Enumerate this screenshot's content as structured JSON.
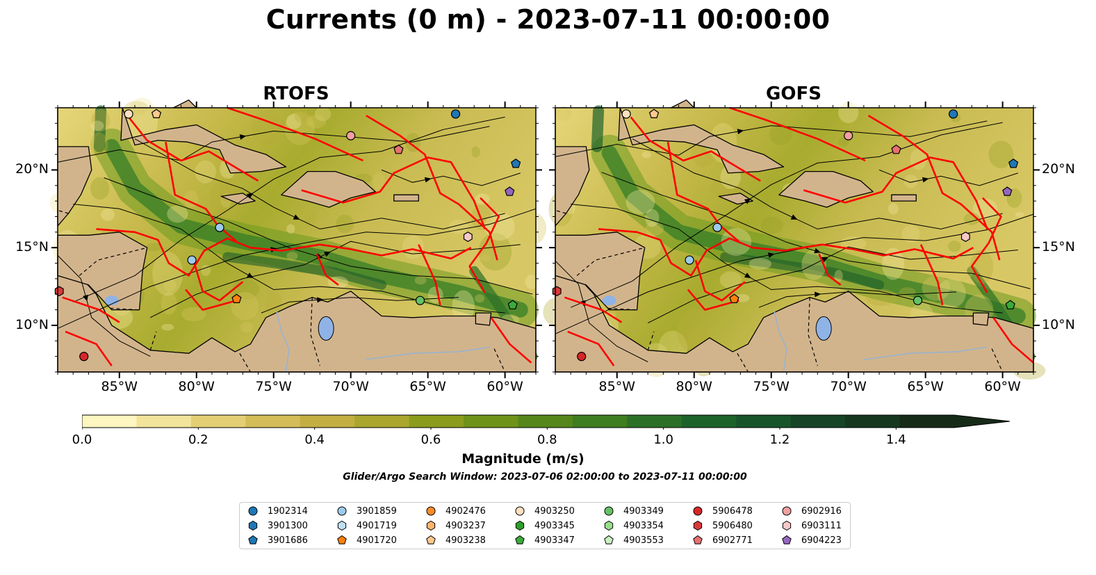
{
  "title": "Currents (0 m) - 2023-07-11 00:00:00",
  "panels": [
    {
      "id": "rtofs",
      "title": "RTOFS"
    },
    {
      "id": "gofs",
      "title": "GOFS"
    }
  ],
  "map_extent": {
    "lon": [
      -89,
      -58
    ],
    "lat": [
      7,
      24
    ]
  },
  "lon_ticks": [
    {
      "value": -85,
      "label": "85°W"
    },
    {
      "value": -80,
      "label": "80°W"
    },
    {
      "value": -75,
      "label": "75°W"
    },
    {
      "value": -70,
      "label": "70°W"
    },
    {
      "value": -65,
      "label": "65°W"
    },
    {
      "value": -60,
      "label": "60°W"
    }
  ],
  "lat_ticks": [
    {
      "value": 10,
      "label": "10°N"
    },
    {
      "value": 15,
      "label": "15°N"
    },
    {
      "value": 20,
      "label": "20°N"
    }
  ],
  "colorbar": {
    "label": "Magnitude (m/s)",
    "min": 0.0,
    "max": 1.5,
    "extend": "max",
    "ticks": [
      "0.0",
      "0.2",
      "0.4",
      "0.6",
      "0.8",
      "1.0",
      "1.2",
      "1.4"
    ],
    "colors": [
      "#fdf6c0",
      "#f2e49a",
      "#e3d075",
      "#d4bd58",
      "#c3ae42",
      "#aaa62e",
      "#8b9c1c",
      "#6f9218",
      "#55861b",
      "#3f7d20",
      "#2b7026",
      "#1d6329",
      "#175429",
      "#154526",
      "#15371f",
      "#162a18"
    ]
  },
  "window_note": "Glider/Argo Search Window: 2023-07-06 02:00:00 to 2023-07-11 00:00:00",
  "colors": {
    "land": "#d2b48c",
    "eez_lines": "#ff0000",
    "lakes": "#8fb3e6",
    "rivers": "#9fb3c8"
  },
  "legend": [
    {
      "label": "1902314",
      "marker": "circle",
      "color": "#1f77b4"
    },
    {
      "label": "3901300",
      "marker": "hexagon",
      "color": "#1f77b4"
    },
    {
      "label": "3901686",
      "marker": "pentagon",
      "color": "#1f77b4"
    },
    {
      "label": "3901859",
      "marker": "circle",
      "color": "#9dcbe9"
    },
    {
      "label": "4901719",
      "marker": "hexagon",
      "color": "#bfe0f4"
    },
    {
      "label": "4901720",
      "marker": "pentagon",
      "color": "#ff7f0e"
    },
    {
      "label": "4902476",
      "marker": "circle",
      "color": "#ff8c2a"
    },
    {
      "label": "4903237",
      "marker": "hexagon",
      "color": "#ffb46e"
    },
    {
      "label": "4903238",
      "marker": "pentagon",
      "color": "#ffc88f"
    },
    {
      "label": "4903250",
      "marker": "circle",
      "color": "#ffe0c0"
    },
    {
      "label": "4903345",
      "marker": "hexagon",
      "color": "#2ca02c"
    },
    {
      "label": "4903347",
      "marker": "pentagon",
      "color": "#3caa3c"
    },
    {
      "label": "4903349",
      "marker": "circle",
      "color": "#66c166"
    },
    {
      "label": "4903354",
      "marker": "hexagon",
      "color": "#98df8a"
    },
    {
      "label": "4903553",
      "marker": "pentagon",
      "color": "#c8f0c0"
    },
    {
      "label": "5906478",
      "marker": "circle",
      "color": "#d62728"
    },
    {
      "label": "5906480",
      "marker": "hexagon",
      "color": "#d83a3a"
    },
    {
      "label": "6902771",
      "marker": "pentagon",
      "color": "#e87070"
    },
    {
      "label": "6902916",
      "marker": "circle",
      "color": "#f0a0a0"
    },
    {
      "label": "6903111",
      "marker": "hexagon",
      "color": "#f8c8c8"
    },
    {
      "label": "6904223",
      "marker": "pentagon",
      "color": "#9467bd"
    }
  ],
  "floats": [
    {
      "id": "4903250",
      "lon": -84.4,
      "lat": 23.6
    },
    {
      "id": "4903238",
      "lon": -82.6,
      "lat": 23.6
    },
    {
      "id": "1902314",
      "lon": -63.2,
      "lat": 23.6
    },
    {
      "id": "6902916",
      "lon": -70.0,
      "lat": 22.2
    },
    {
      "id": "6902771",
      "lon": -66.9,
      "lat": 21.3
    },
    {
      "id": "3901686",
      "lon": -59.3,
      "lat": 20.4
    },
    {
      "id": "6904223",
      "lon": -59.7,
      "lat": 18.6
    },
    {
      "id": "3901859",
      "lon": -78.5,
      "lat": 16.3
    },
    {
      "id": "6903111",
      "lon": -62.4,
      "lat": 15.7
    },
    {
      "id": "3901859",
      "lon": -80.3,
      "lat": 14.2
    },
    {
      "id": "5906480",
      "lon": -88.9,
      "lat": 12.2
    },
    {
      "id": "4901720",
      "lon": -77.4,
      "lat": 11.7
    },
    {
      "id": "4903349",
      "lon": -65.5,
      "lat": 11.6
    },
    {
      "id": "4903347",
      "lon": -59.5,
      "lat": 11.3
    },
    {
      "id": "5906478",
      "lon": -87.3,
      "lat": 8.0
    }
  ]
}
